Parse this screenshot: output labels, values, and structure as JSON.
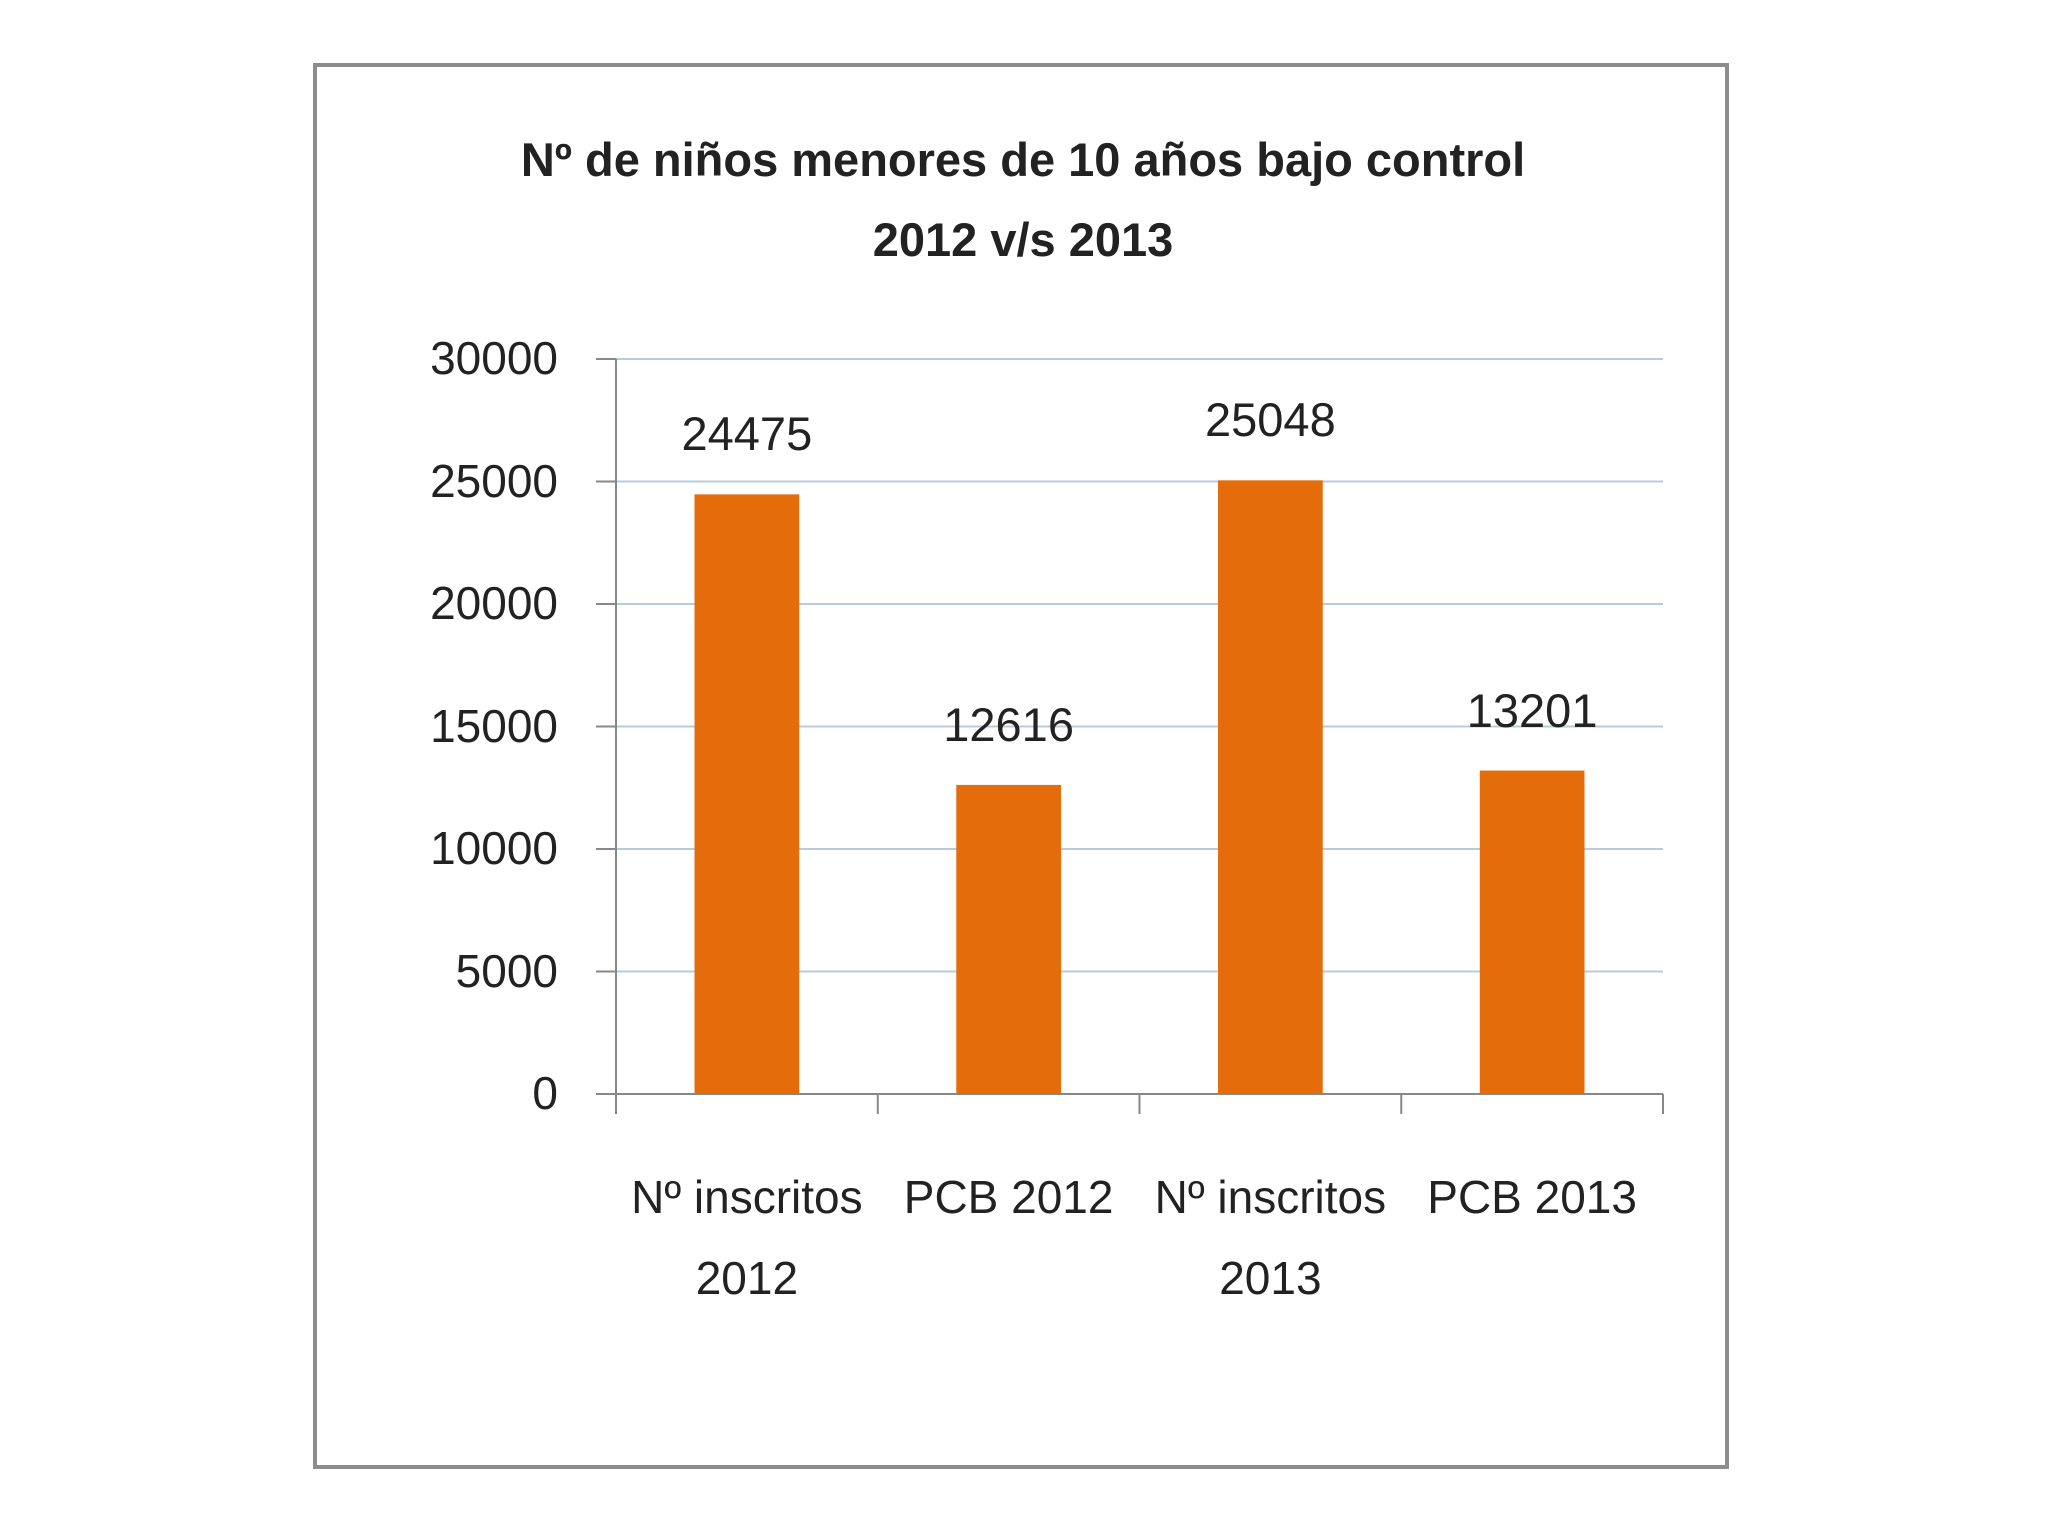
{
  "chart_data": {
    "type": "bar",
    "title": "Nº de niños menores de 10 años bajo control 2012 v/s 2013",
    "categories": [
      "Nº inscritos 2012",
      "PCB 2012",
      "Nº inscritos 2013",
      "PCB 2013"
    ],
    "values": [
      24475,
      12616,
      25048,
      13201
    ],
    "color": "#e46c0a",
    "ylim": [
      0,
      30000
    ],
    "yticks": [
      0,
      5000,
      10000,
      15000,
      20000,
      25000,
      30000
    ],
    "grid": true
  }
}
